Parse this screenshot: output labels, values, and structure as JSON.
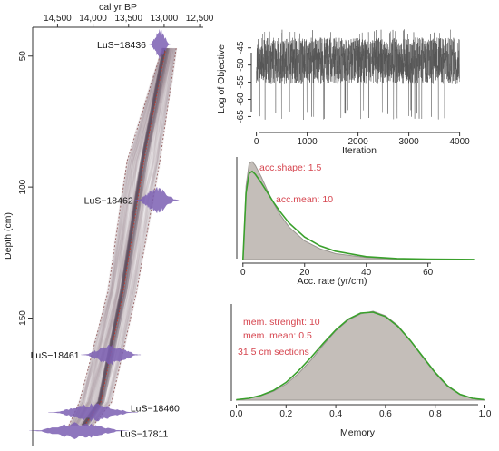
{
  "colors": {
    "axis": "#333333",
    "age_model_band": "#8c7a8a",
    "median_line": "#c0392b",
    "date_distribution": "#7b5fb3",
    "trace": "#555555",
    "posterior_fill": "#c4beb9",
    "posterior_line": "#9a9691",
    "prior_line": "#3aa02c",
    "annotation": "#d6454f"
  },
  "chart_data": [
    {
      "type": "line",
      "name": "age-depth",
      "x_axis": {
        "title": "cal yr BP",
        "ticks": [
          "14,500",
          "14,000",
          "13,500",
          "13,000",
          "12,500"
        ],
        "tick_values": [
          14500,
          14000,
          13500,
          13000,
          12500
        ],
        "range": [
          14850,
          12450
        ],
        "reversed": true
      },
      "y_axis": {
        "title": "Depth (cm)",
        "ticks": [
          "50",
          "100",
          "150"
        ],
        "tick_values": [
          50,
          100,
          150
        ],
        "range": [
          199,
          39
        ],
        "reversed": true
      },
      "model_median": {
        "x": [
          12975,
          13285,
          13575,
          13890,
          14120
        ],
        "y": [
          47,
          90,
          140,
          182,
          191
        ]
      },
      "confidence_lower": {
        "x": [
          12830,
          13060,
          13390,
          13740,
          14000
        ],
        "y": [
          47,
          90,
          140,
          182,
          191
        ]
      },
      "confidence_upper": {
        "x": [
          13025,
          13520,
          13790,
          14190,
          14340
        ],
        "y": [
          47,
          90,
          140,
          182,
          191
        ]
      },
      "dates": [
        {
          "label": "LuS−18436",
          "depth": 45.5,
          "age": 13060,
          "spread": 110
        },
        {
          "label": "LuS−18462",
          "depth": 105,
          "age": 13100,
          "spread": 220
        },
        {
          "label": "LuS−18461",
          "depth": 164,
          "age": 13750,
          "spread": 300
        },
        {
          "label": "LuS−18460",
          "depth": 186,
          "age": 14000,
          "spread": 450
        },
        {
          "label": "LuS−17811",
          "depth": 193,
          "age": 14200,
          "spread": 500
        }
      ],
      "grid": false
    },
    {
      "type": "line",
      "name": "mcmc-trace",
      "x_axis": {
        "title": "Iteration",
        "ticks": [
          "0",
          "1000",
          "2000",
          "3000",
          "4000"
        ],
        "tick_values": [
          0,
          1000,
          2000,
          3000,
          4000
        ],
        "range": [
          -100,
          4150
        ]
      },
      "y_axis": {
        "title": "Log of Objective",
        "ticks": [
          "-45",
          "-50",
          "-55",
          "-60",
          "-65"
        ],
        "tick_values": [
          -45,
          -50,
          -55,
          -60,
          -65
        ],
        "range": [
          -67,
          -39
        ]
      },
      "iterations": 4000,
      "typical_range": [
        -59,
        -42
      ],
      "extremes": [
        -66,
        -41
      ],
      "grid": false
    },
    {
      "type": "area",
      "name": "accumulation-rate",
      "x_axis": {
        "title": "Acc. rate (yr/cm)",
        "ticks": [
          "0",
          "20",
          "40",
          "60"
        ],
        "tick_values": [
          0,
          20,
          40,
          60
        ],
        "range": [
          -2,
          76
        ]
      },
      "y_axis": {
        "ticks": [],
        "range": [
          0,
          1
        ]
      },
      "posterior": {
        "x": [
          0,
          1,
          2,
          3,
          4,
          6,
          8,
          10,
          12,
          15,
          20,
          25,
          30,
          40,
          50,
          60,
          75
        ],
        "y": [
          0,
          0.75,
          0.98,
          1.0,
          0.96,
          0.84,
          0.7,
          0.57,
          0.46,
          0.33,
          0.19,
          0.11,
          0.06,
          0.02,
          0.008,
          0.003,
          0
        ]
      },
      "prior": {
        "x": [
          0,
          1,
          2,
          3,
          4,
          6,
          8,
          10,
          12,
          15,
          20,
          25,
          30,
          40,
          50,
          60,
          75
        ],
        "y": [
          0,
          0.68,
          0.88,
          0.9,
          0.87,
          0.78,
          0.68,
          0.58,
          0.49,
          0.37,
          0.23,
          0.14,
          0.085,
          0.03,
          0.01,
          0.004,
          0.001
        ]
      },
      "annotations": [
        "acc.shape: 1.5",
        "acc.mean: 10"
      ],
      "grid": false
    },
    {
      "type": "area",
      "name": "memory",
      "x_axis": {
        "title": "Memory",
        "ticks": [
          "0.0",
          "0.2",
          "0.4",
          "0.6",
          "0.8",
          "1.0"
        ],
        "tick_values": [
          0,
          0.2,
          0.4,
          0.6,
          0.8,
          1.0
        ],
        "range": [
          -0.02,
          1.02
        ]
      },
      "y_axis": {
        "ticks": [],
        "range": [
          0,
          1
        ]
      },
      "posterior": {
        "x": [
          0,
          0.05,
          0.1,
          0.15,
          0.2,
          0.25,
          0.3,
          0.35,
          0.4,
          0.45,
          0.5,
          0.55,
          0.6,
          0.65,
          0.7,
          0.75,
          0.8,
          0.85,
          0.9,
          0.95,
          1.0
        ],
        "y": [
          0.005,
          0.02,
          0.05,
          0.1,
          0.18,
          0.3,
          0.45,
          0.62,
          0.78,
          0.9,
          0.97,
          1.0,
          0.95,
          0.84,
          0.67,
          0.48,
          0.3,
          0.15,
          0.06,
          0.02,
          0.005
        ]
      },
      "prior": {
        "x": [
          0,
          0.05,
          0.1,
          0.15,
          0.2,
          0.25,
          0.3,
          0.35,
          0.4,
          0.45,
          0.5,
          0.55,
          0.6,
          0.65,
          0.7,
          0.75,
          0.8,
          0.85,
          0.9,
          0.95,
          1.0
        ],
        "y": [
          0.005,
          0.02,
          0.055,
          0.11,
          0.2,
          0.33,
          0.48,
          0.64,
          0.79,
          0.91,
          0.98,
          0.99,
          0.94,
          0.83,
          0.67,
          0.49,
          0.31,
          0.16,
          0.065,
          0.02,
          0.004
        ]
      },
      "annotations": [
        "mem. strenght: 10",
        "mem. mean: 0.5",
        "31 5 cm sections"
      ],
      "grid": false
    }
  ]
}
